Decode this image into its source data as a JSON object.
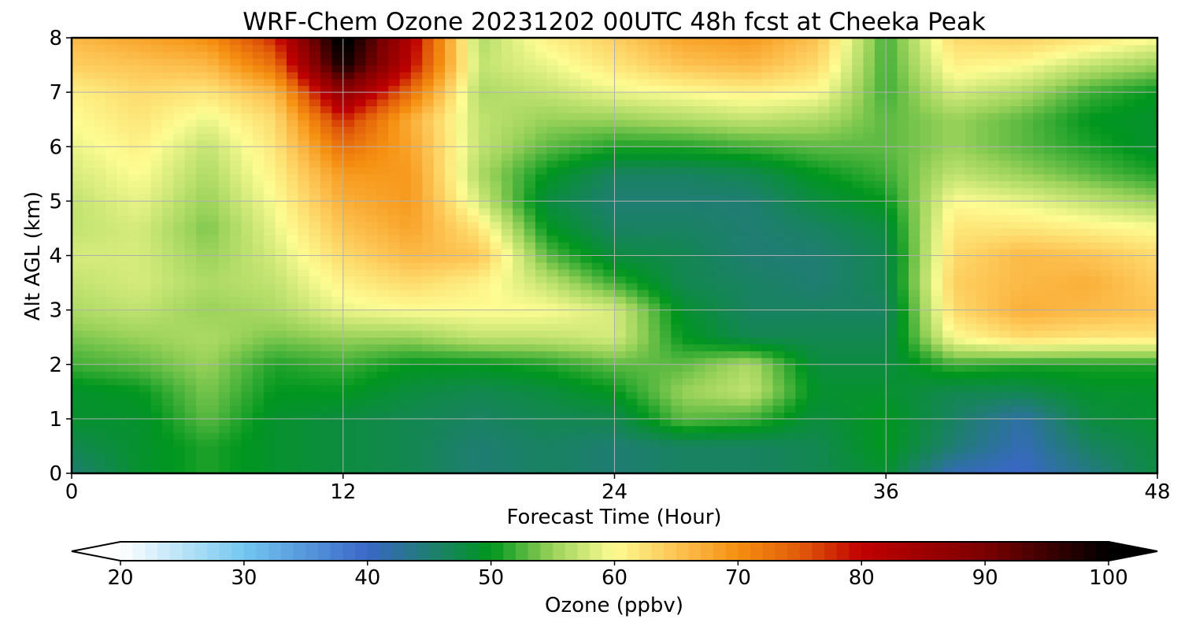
{
  "chart_data": {
    "type": "heatmap",
    "title": "WRF-Chem Ozone  20231202 00UTC 48h fcst at Cheeka Peak",
    "xlabel": "Forecast Time (Hour)",
    "ylabel": "Alt AGL (km)",
    "xlim": [
      0,
      48
    ],
    "ylim": [
      0,
      8
    ],
    "xticks": [
      "0",
      "12",
      "24",
      "36",
      "48"
    ],
    "yticks": [
      "0",
      "1",
      "2",
      "3",
      "4",
      "5",
      "6",
      "7",
      "8"
    ],
    "grid": true,
    "x": [
      0,
      3,
      6,
      9,
      12,
      15,
      18,
      21,
      24,
      27,
      30,
      33,
      36,
      39,
      42,
      45,
      48
    ],
    "y": [
      0,
      0.5,
      1,
      1.5,
      2,
      2.5,
      3,
      3.5,
      4,
      4.5,
      5,
      5.5,
      6,
      6.5,
      7,
      7.5,
      8
    ],
    "z": [
      [
        45,
        49,
        51,
        49,
        48,
        47,
        45,
        46,
        45,
        46,
        46,
        47,
        49,
        41,
        40,
        44,
        48
      ],
      [
        47,
        49,
        51,
        49,
        48,
        47,
        45,
        46,
        45,
        46,
        46,
        47,
        50,
        45,
        41,
        46,
        48
      ],
      [
        49,
        49,
        53,
        49,
        48,
        47,
        46,
        47,
        47,
        53,
        52,
        48,
        50,
        46,
        42,
        48,
        49
      ],
      [
        49,
        50,
        54,
        50,
        50,
        48,
        47,
        48,
        50,
        55,
        57,
        49,
        49,
        47,
        47,
        49,
        49
      ],
      [
        52,
        53,
        55,
        51,
        52,
        50,
        50,
        51,
        53,
        53,
        56,
        48,
        48,
        52,
        51,
        51,
        51
      ],
      [
        54,
        55,
        56,
        54,
        55,
        55,
        57,
        57,
        58,
        50,
        47,
        47,
        47,
        60,
        63,
        62,
        62
      ],
      [
        56,
        57,
        55,
        56,
        59,
        60,
        60,
        60,
        58,
        49,
        46,
        46,
        46,
        63,
        67,
        66,
        65
      ],
      [
        57,
        58,
        56,
        57,
        61,
        63,
        61,
        57,
        52,
        47,
        46,
        45,
        47,
        64,
        66,
        67,
        64
      ],
      [
        58,
        58,
        55,
        58,
        63,
        66,
        65,
        53,
        48,
        47,
        45,
        45,
        47,
        63,
        66,
        65,
        63
      ],
      [
        57,
        58,
        54,
        59,
        65,
        68,
        62,
        50,
        46,
        46,
        45,
        46,
        48,
        62,
        62,
        61,
        60
      ],
      [
        57,
        59,
        55,
        60,
        67,
        69,
        58,
        48,
        45,
        45,
        45,
        48,
        50,
        60,
        59,
        57,
        55
      ],
      [
        58,
        60,
        56,
        61,
        69,
        69,
        56,
        50,
        46,
        46,
        47,
        50,
        52,
        57,
        55,
        53,
        51
      ],
      [
        59,
        61,
        57,
        62,
        73,
        68,
        57,
        53,
        51,
        51,
        52,
        53,
        53,
        55,
        53,
        51,
        49
      ],
      [
        60,
        62,
        59,
        63,
        78,
        67,
        57,
        55,
        55,
        56,
        57,
        56,
        53,
        55,
        53,
        50,
        49
      ],
      [
        61,
        63,
        62,
        66,
        87,
        73,
        56,
        57,
        59,
        60,
        61,
        60,
        52,
        58,
        56,
        52,
        50
      ],
      [
        64,
        65,
        66,
        73,
        99,
        80,
        57,
        59,
        62,
        65,
        66,
        63,
        52,
        61,
        60,
        57,
        55
      ],
      [
        66,
        68,
        70,
        78,
        102,
        82,
        56,
        61,
        64,
        68,
        69,
        65,
        52,
        63,
        64,
        62,
        60
      ]
    ]
  },
  "colorbar": {
    "label": "Ozone  (ppbv)",
    "min": 20,
    "max": 100,
    "ticks": [
      "20",
      "30",
      "40",
      "50",
      "60",
      "70",
      "80",
      "90",
      "100"
    ],
    "extend": "both",
    "colors": [
      {
        "v": 20,
        "c": "#ffffff"
      },
      {
        "v": 30,
        "c": "#73c7f0"
      },
      {
        "v": 40,
        "c": "#3a67c8"
      },
      {
        "v": 45,
        "c": "#1f7d72"
      },
      {
        "v": 50,
        "c": "#00961e"
      },
      {
        "v": 55,
        "c": "#9ad25a"
      },
      {
        "v": 60,
        "c": "#fdfc92"
      },
      {
        "v": 65,
        "c": "#fdc453"
      },
      {
        "v": 70,
        "c": "#f58f10"
      },
      {
        "v": 75,
        "c": "#e15b0a"
      },
      {
        "v": 80,
        "c": "#c00000"
      },
      {
        "v": 90,
        "c": "#7a0000"
      },
      {
        "v": 100,
        "c": "#000000"
      }
    ]
  }
}
